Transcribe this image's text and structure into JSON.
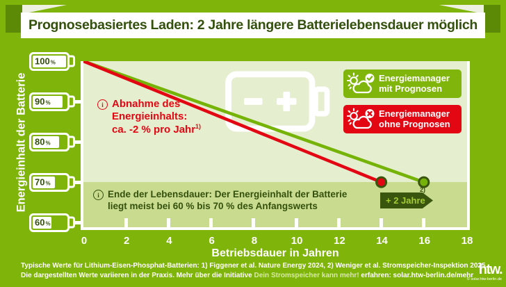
{
  "colors": {
    "background": "#7fb50b",
    "plot_bg": "#e5eecf",
    "eol_band": "#c9db8e",
    "dark_green": "#3a560e",
    "red": "#e30613",
    "line_green": "#76b309",
    "legend_green": "#80b60c",
    "banner_bg": "#ffffff"
  },
  "title": {
    "text": "Prognosebasiertes Laden: 2 Jahre längere Batterielebensdauer möglich"
  },
  "y_axis": {
    "label": "Energieinhalt der Batterie",
    "batteries": [
      {
        "label": "100",
        "unit": "%",
        "pct": 100
      },
      {
        "label": "90",
        "unit": "%",
        "pct": 90
      },
      {
        "label": "80",
        "unit": "%",
        "pct": 80
      },
      {
        "label": "70",
        "unit": "%",
        "pct": 70
      },
      {
        "label": "60",
        "unit": "%",
        "pct": 60
      }
    ]
  },
  "x_axis": {
    "label": "Betriebsdauer in Jahren"
  },
  "legend": {
    "with_forecast": {
      "line1": "Energiemanager",
      "line2": "mit Prognosen",
      "badge": "check-circle",
      "icon": "sun-cloud"
    },
    "without_forecast": {
      "line1": "Energiemanager",
      "line2": "ohne Prognosen",
      "badge": "cross-circle",
      "icon": "sun-cloud"
    }
  },
  "annotations": {
    "decline": {
      "icon": "info-circle",
      "line1": "Abnahme des",
      "line2": "Energieinhalts:",
      "line3": "ca. -2 % pro Jahr",
      "sup": "1)"
    },
    "eol": {
      "icon": "info-circle",
      "line1": "Ende der Lebensdauer: Der Energieinhalt der Batterie",
      "line2": "liegt meist bei 60 % bis 70 % des Anfangswerts"
    },
    "gain": {
      "label": "+ 2 Jahre",
      "sup": "2)"
    }
  },
  "footer": {
    "line1": "Typische Werte für Lithium-Eisen-Phosphat-Batterien: 1) Figgener et al. Nature Energy 2024, 2) Weniger et al. Stromspeicher-Inspektion 2025",
    "line2_prefix": "Die dargestellten Werte variieren in der Praxis. Mehr über die Initiative ",
    "line2_highlight": "Dein Stromspeicher kann mehr!",
    "line2_suffix": " erfahren: solar.htw-berlin.de/mehr"
  },
  "logo": {
    "text": "htw.",
    "subtext": "© solar.htw-berlin.de"
  },
  "chart_data": {
    "type": "line",
    "title": "Prognosebasiertes Laden: 2 Jahre längere Batterielebensdauer möglich",
    "xlabel": "Betriebsdauer in Jahren",
    "ylabel": "Energieinhalt der Batterie",
    "xlim": [
      0,
      18
    ],
    "ylim": [
      59,
      100
    ],
    "x_ticks": [
      0,
      2,
      4,
      6,
      8,
      10,
      12,
      14,
      16,
      18
    ],
    "y_ticks_pct": [
      100,
      90,
      80,
      70,
      60
    ],
    "grid": false,
    "legend_position": "top-right",
    "series": [
      {
        "name": "Energiemanager mit Prognosen",
        "color": "#76b309",
        "x": [
          0,
          16
        ],
        "y": [
          100,
          70
        ],
        "endpoint_dot": true
      },
      {
        "name": "Energiemanager ohne Prognosen",
        "color": "#e30613",
        "x": [
          0,
          14
        ],
        "y": [
          100,
          70
        ],
        "endpoint_dot": true
      }
    ],
    "end_of_life_band_top_pct": 70,
    "decline_rate_pct_per_year": -2,
    "end_of_life_range_pct": [
      60,
      70
    ],
    "lifetime_gain_years": 2
  }
}
